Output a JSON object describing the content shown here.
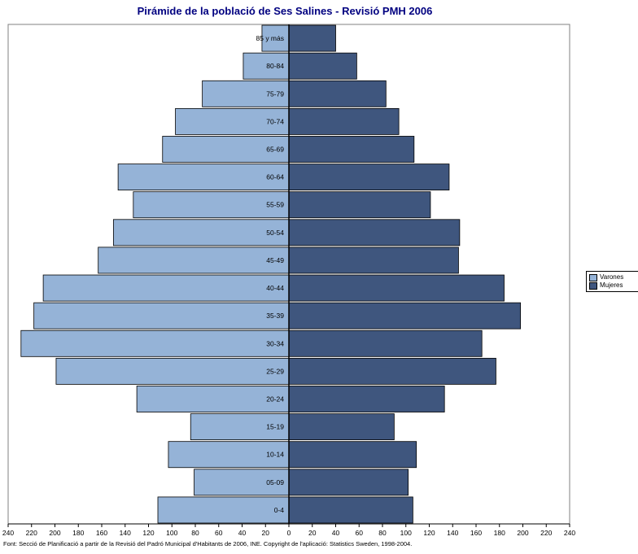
{
  "chart_data": {
    "type": "bar",
    "title": "Pirámide de la població de Ses Salines - Revisió PMH 2006",
    "categories": [
      "85 y más",
      "80-84",
      "75-79",
      "70-74",
      "65-69",
      "60-64",
      "55-59",
      "50-54",
      "45-49",
      "40-44",
      "35-39",
      "30-34",
      "25-29",
      "20-24",
      "15-19",
      "10-14",
      "05-09",
      "0-4"
    ],
    "series": [
      {
        "name": "Varones",
        "color": "#95B3D7",
        "values": [
          23,
          39,
          74,
          97,
          108,
          146,
          133,
          150,
          163,
          210,
          218,
          229,
          199,
          130,
          84,
          103,
          81,
          112
        ]
      },
      {
        "name": "Mujeres",
        "color": "#3F567E",
        "values": [
          40,
          58,
          83,
          94,
          107,
          137,
          121,
          146,
          145,
          184,
          198,
          165,
          177,
          133,
          90,
          109,
          102,
          106
        ]
      }
    ],
    "x_ticks": [
      "240",
      "220",
      "200",
      "180",
      "160",
      "140",
      "120",
      "100",
      "80",
      "60",
      "40",
      "20",
      "0",
      "20",
      "40",
      "60",
      "80",
      "100",
      "120",
      "140",
      "160",
      "180",
      "200",
      "220",
      "240"
    ],
    "xlim": [
      -240,
      240
    ],
    "grid": false,
    "legend": "right"
  },
  "legend": {
    "items": [
      {
        "label": "Varones",
        "color": "#95B3D7"
      },
      {
        "label": "Mujeres",
        "color": "#3F567E"
      }
    ]
  },
  "source_note": "Font: Secció de Planificació a partir de la Revisió del Padró Municipal d'Habitants de 2006, INE. Copyright de l'aplicació: Statistics Sweden, 1998-2004."
}
